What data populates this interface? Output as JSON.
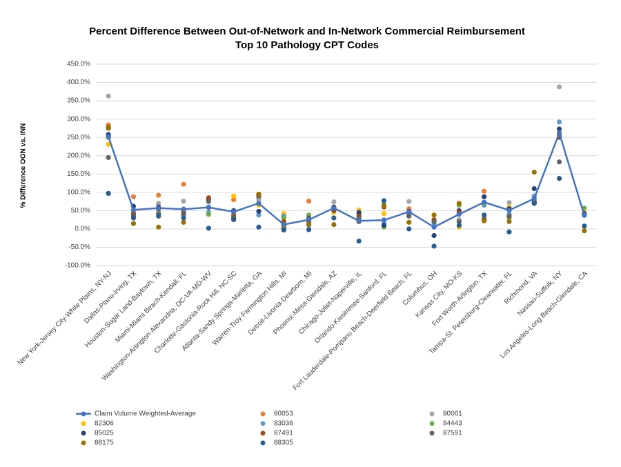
{
  "chart_data": {
    "type": "line",
    "title": "Percent Difference Between Out-of-Network and In-Network Commercial Reimbursement",
    "subtitle": "Top 10 Pathology CPT Codes",
    "y_label": "% Difference OON vs. INN",
    "categories": [
      "New York-Jersey City-White Plains, NY-NJ",
      "Dallas-Plano-Irving, TX",
      "Houston-Sugar Land-Baytown, TX",
      "Miami-Miami Beach-Kendall, FL",
      "Washington-Arlington-Alexandria, DC-VA-MD-WV",
      "Charlotte-Gastonia-Rock Hill, NC-SC",
      "Atlanta-Sandy Springs-Marietta, GA",
      "Warren-Troy-Farmington Hills, MI",
      "Detroit-Livonia-Dearborn, MI",
      "Phoenix-Mesa-Glendale, AZ",
      "Chicago-Joliet-Naperville, IL",
      "Orlando-Kissimmee-Sanford, FL",
      "Fort Lauderdale-Pompano Beach-Deerfield Beach, FL",
      "Columbus, OH",
      "Kansas City, MO-KS",
      "Fort Worth-Arlington, TX",
      "Tampa-St. Petersburg-Clearwater, FL",
      "Richmond, VA",
      "Nassau-Suffolk, NY",
      "Los Angeles-Long Beach-Glendale, CA"
    ],
    "series": [
      {
        "name": "Claim Volume Weighted-Average",
        "color": "#4472c4",
        "mode": "lines+markers",
        "values": [
          252,
          52,
          57,
          54,
          59,
          47,
          70,
          12,
          25,
          57,
          22,
          24,
          47,
          5,
          40,
          73,
          51,
          83,
          262,
          37
        ]
      },
      {
        "name": "80053",
        "color": "#ed7d31",
        "mode": "markers",
        "values": [
          284,
          88,
          92,
          122,
          60,
          80,
          85,
          35,
          76,
          58,
          30,
          60,
          55,
          20,
          45,
          103,
          60,
          75,
          260,
          40
        ]
      },
      {
        "name": "80061",
        "color": "#a5a5a5",
        "mode": "markers",
        "values": [
          363,
          40,
          70,
          76,
          60,
          35,
          80,
          10,
          15,
          74,
          25,
          25,
          75,
          15,
          25,
          65,
          72,
          70,
          388,
          40
        ]
      },
      {
        "name": "82306",
        "color": "#ffc000",
        "mode": "markers",
        "values": [
          231,
          40,
          50,
          50,
          40,
          90,
          65,
          42,
          30,
          45,
          52,
          42,
          40,
          20,
          5,
          70,
          60,
          80,
          255,
          45
        ]
      },
      {
        "name": "83036",
        "color": "#5b9bd5",
        "mode": "markers",
        "values": [
          255,
          45,
          45,
          45,
          45,
          40,
          38,
          35,
          10,
          55,
          20,
          15,
          40,
          10,
          20,
          65,
          40,
          90,
          292,
          40
        ]
      },
      {
        "name": "84443",
        "color": "#70ad47",
        "mode": "markers",
        "values": [
          250,
          38,
          40,
          40,
          40,
          50,
          70,
          30,
          38,
          50,
          40,
          5,
          40,
          20,
          65,
          70,
          30,
          70,
          255,
          57
        ]
      },
      {
        "name": "85025",
        "color": "#264478",
        "mode": "markers",
        "values": [
          258,
          62,
          60,
          40,
          80,
          50,
          48,
          0,
          25,
          60,
          45,
          10,
          48,
          -18,
          50,
          88,
          55,
          110,
          273,
          42
        ]
      },
      {
        "name": "87491",
        "color": "#9e480e",
        "mode": "markers",
        "values": [
          277,
          40,
          55,
          45,
          85,
          35,
          95,
          20,
          20,
          50,
          35,
          60,
          35,
          25,
          45,
          28,
          35,
          70,
          250,
          40
        ]
      },
      {
        "name": "87591",
        "color": "#636363",
        "mode": "markers",
        "values": [
          195,
          35,
          40,
          40,
          75,
          25,
          90,
          10,
          30,
          55,
          30,
          65,
          35,
          20,
          20,
          25,
          35,
          75,
          183,
          40
        ]
      },
      {
        "name": "88175",
        "color": "#997300",
        "mode": "markers",
        "values": [
          275,
          15,
          5,
          18,
          58,
          30,
          95,
          5,
          12,
          12,
          20,
          63,
          18,
          38,
          70,
          22,
          20,
          155,
          258,
          -5
        ]
      },
      {
        "name": "88305",
        "color": "#255e91",
        "mode": "markers",
        "values": [
          97,
          30,
          35,
          30,
          2,
          28,
          5,
          -3,
          -2,
          30,
          -33,
          77,
          0,
          -47,
          10,
          38,
          -8,
          70,
          138,
          8
        ]
      }
    ],
    "ylim": [
      -100,
      450
    ],
    "yticks": [
      {
        "value": -100,
        "label": "-100.0%"
      },
      {
        "value": -50,
        "label": "-50.0%"
      },
      {
        "value": 0,
        "label": "0.0%"
      },
      {
        "value": 50,
        "label": "50.0%"
      },
      {
        "value": 100,
        "label": "100.0%"
      },
      {
        "value": 150,
        "label": "150.0%"
      },
      {
        "value": 200,
        "label": "200.0%"
      },
      {
        "value": 250,
        "label": "250.0%"
      },
      {
        "value": 300,
        "label": "300.0%"
      },
      {
        "value": 350,
        "label": "350.0%"
      },
      {
        "value": 400,
        "label": "400.0%"
      },
      {
        "value": 450,
        "label": "450.0%"
      }
    ],
    "grid": true,
    "legend": "bottom"
  }
}
